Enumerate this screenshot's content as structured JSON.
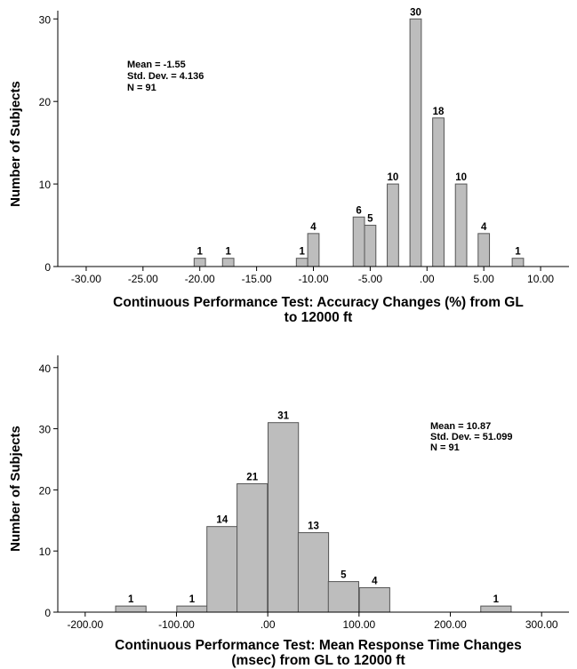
{
  "chart_data": [
    {
      "type": "bar",
      "subtype": "histogram",
      "xlabel_lines": [
        "Continuous Performance Test:  Accuracy Changes (%) from GL",
        "to 12000 ft"
      ],
      "ylabel": "Number of Subjects",
      "xlim": [
        -32.5,
        12.5
      ],
      "ylim": [
        0,
        31
      ],
      "xticks": [
        -30,
        -25,
        -20,
        -15,
        -10,
        -5,
        0,
        5,
        10
      ],
      "xtick_labels": [
        "-30.00",
        "-25.00",
        "-20.00",
        "-15.00",
        "-10.00",
        "-5.00",
        ".00",
        "5.00",
        "10.00"
      ],
      "yticks": [
        0,
        10,
        20,
        30
      ],
      "ytick_labels": [
        "0",
        "10",
        "20",
        "30"
      ],
      "bin_width": 1.0,
      "bins": [
        {
          "center": -20,
          "value": 1
        },
        {
          "center": -17.5,
          "value": 1
        },
        {
          "center": -11,
          "value": 1
        },
        {
          "center": -10,
          "value": 4
        },
        {
          "center": -6,
          "value": 6
        },
        {
          "center": -5,
          "value": 5
        },
        {
          "center": -3,
          "value": 10
        },
        {
          "center": -1,
          "value": 30
        },
        {
          "center": 1,
          "value": 18
        },
        {
          "center": 3,
          "value": 10
        },
        {
          "center": 5,
          "value": 4
        },
        {
          "center": 8,
          "value": 1
        }
      ],
      "stats": [
        "Mean = -1.55",
        "Std. Dev. = 4.136",
        "N = 91"
      ],
      "grid": false
    },
    {
      "type": "bar",
      "subtype": "histogram",
      "xlabel_lines": [
        "Continuous Performance Test:  Mean Response Time Changes",
        "(msec) from GL to 12000 ft"
      ],
      "ylabel": "Number of Subjects",
      "xlim": [
        -230,
        330
      ],
      "ylim": [
        0,
        42
      ],
      "xticks": [
        -200,
        -100,
        0,
        100,
        200,
        300
      ],
      "xtick_labels": [
        "-200.00",
        "-100.00",
        ".00",
        "100.00",
        "200.00",
        "300.00"
      ],
      "yticks": [
        0,
        10,
        20,
        30,
        40
      ],
      "ytick_labels": [
        "0",
        "10",
        "20",
        "30",
        "40"
      ],
      "bin_width": 33.3,
      "bins": [
        {
          "center": -150,
          "value": 1
        },
        {
          "center": -83,
          "value": 1
        },
        {
          "center": -50,
          "value": 14
        },
        {
          "center": -17,
          "value": 21
        },
        {
          "center": 17,
          "value": 31
        },
        {
          "center": 50,
          "value": 13
        },
        {
          "center": 83,
          "value": 5
        },
        {
          "center": 117,
          "value": 4
        },
        {
          "center": 250,
          "value": 1
        }
      ],
      "stats": [
        "Mean = 10.87",
        "Std. Dev. = 51.099",
        "N = 91"
      ],
      "grid": false
    }
  ]
}
